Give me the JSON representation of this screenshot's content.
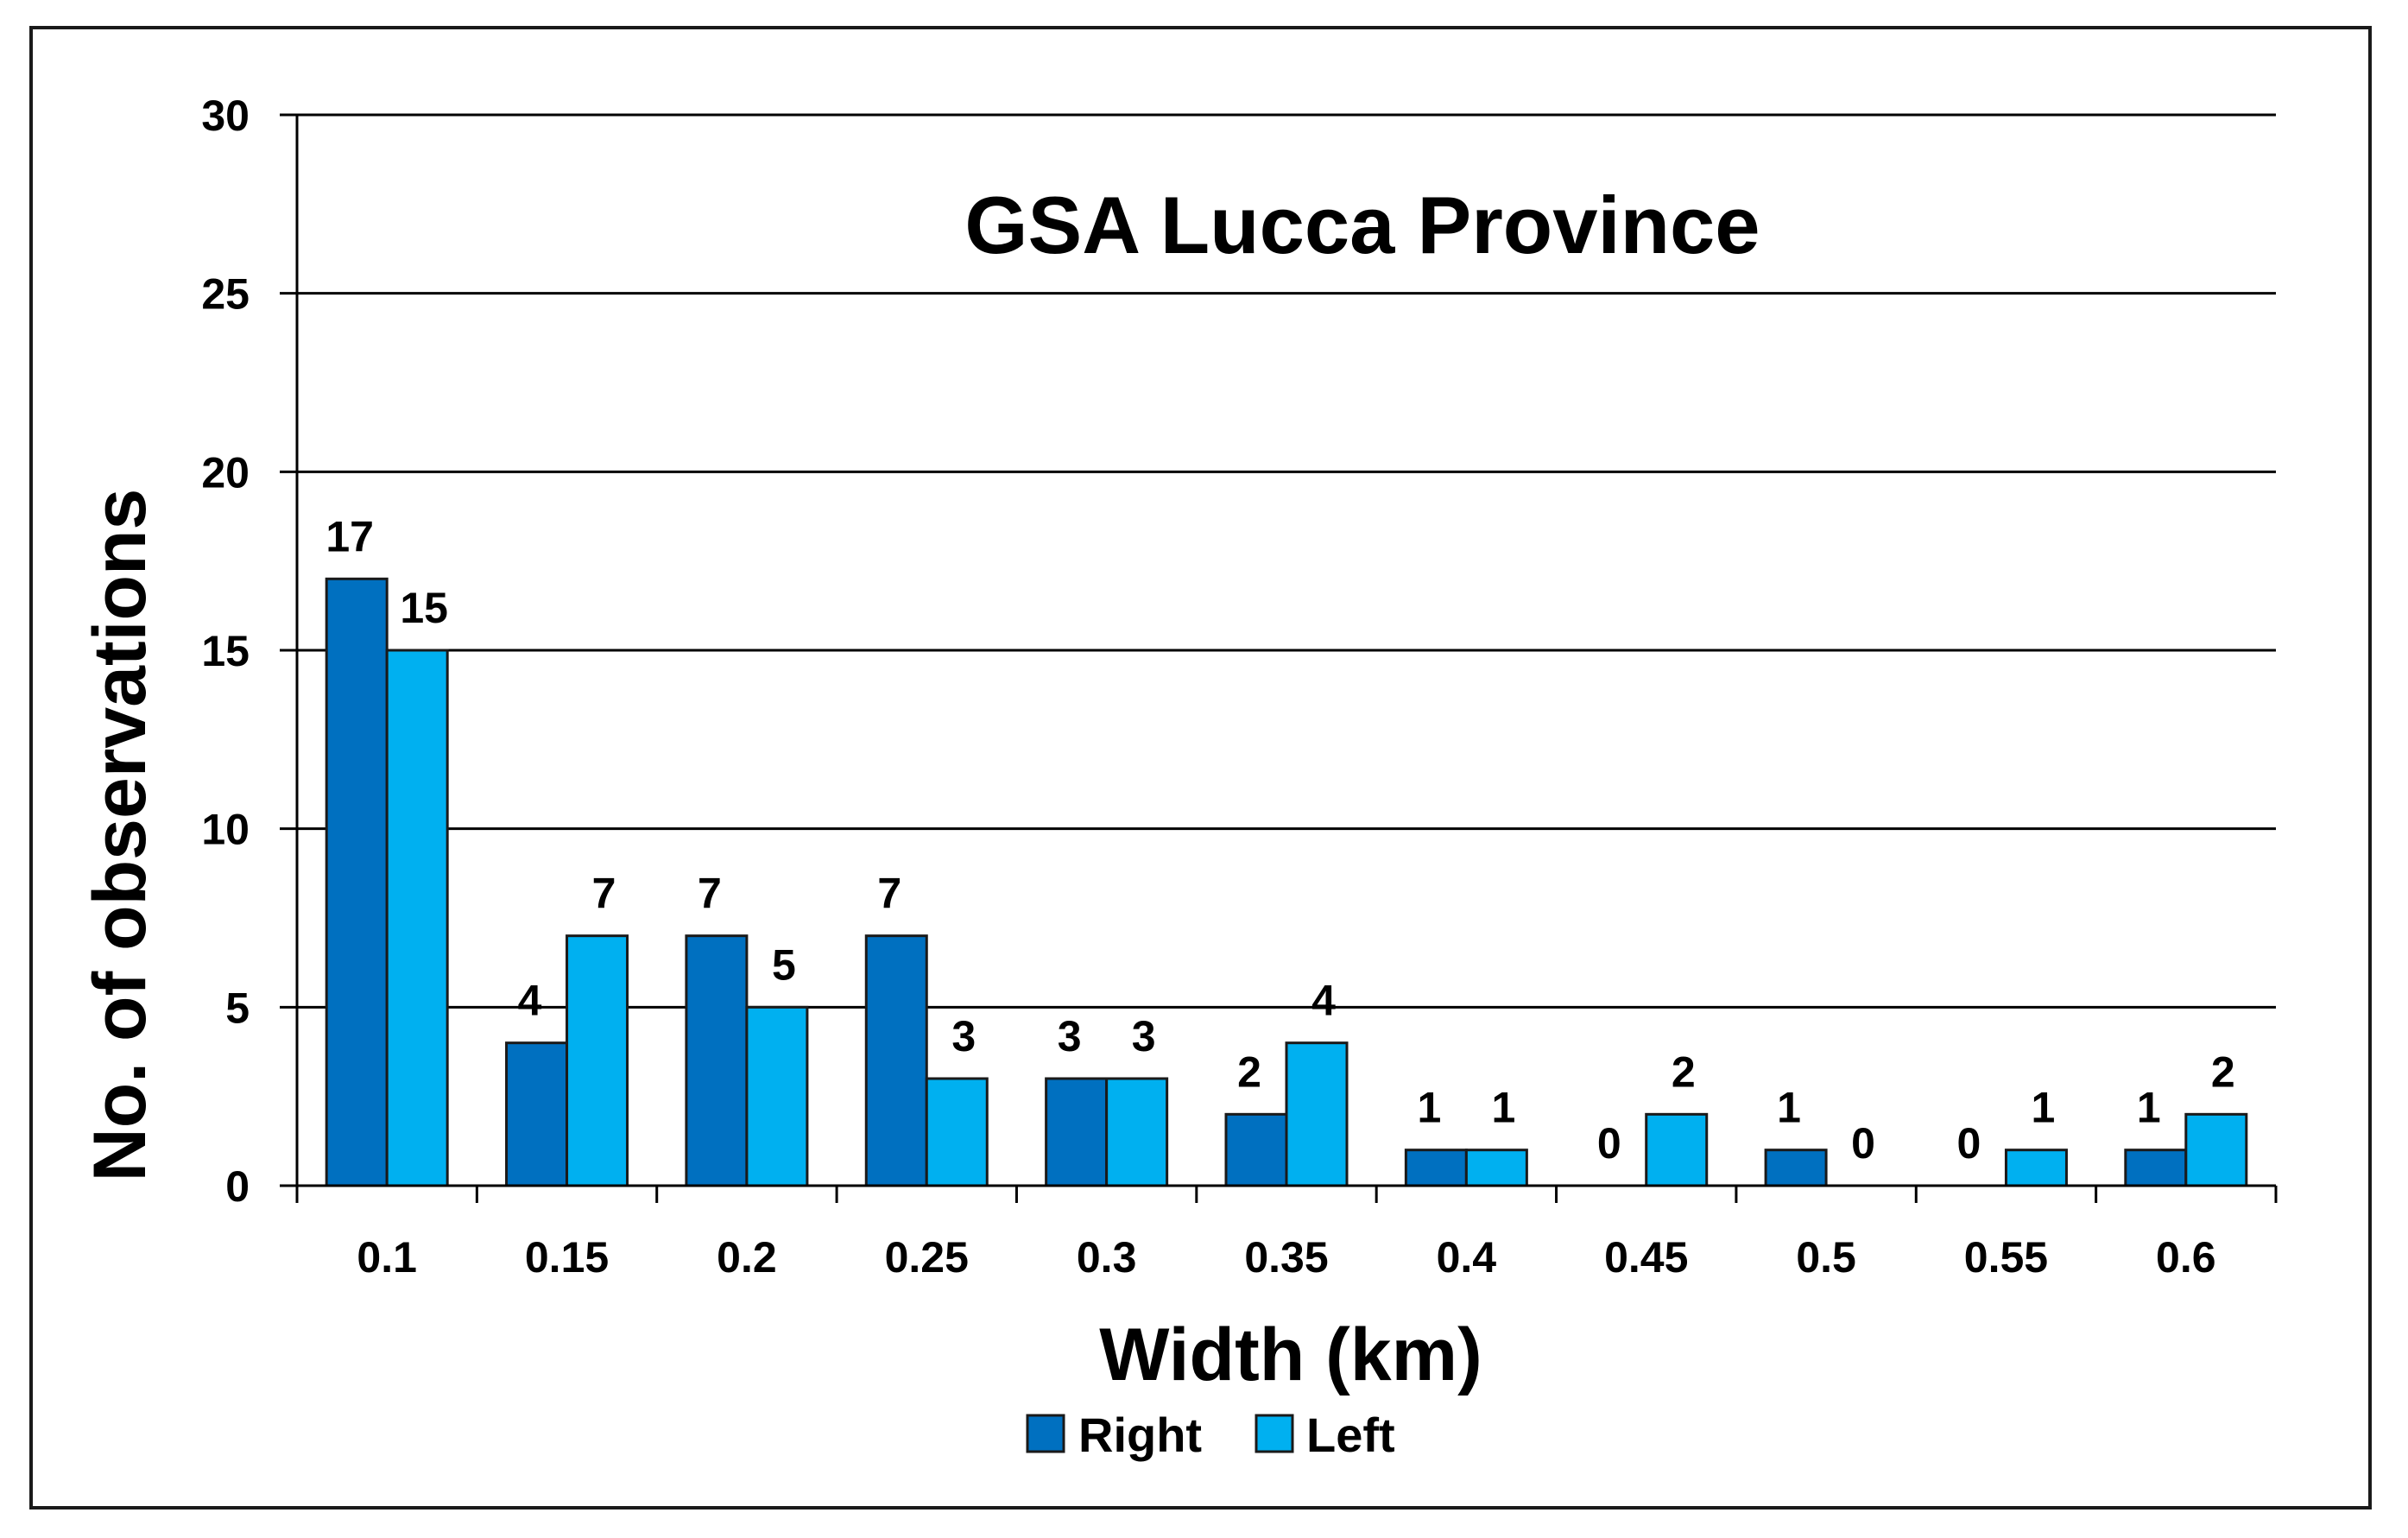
{
  "chart_data": {
    "type": "bar",
    "title": "GSA Lucca Province",
    "xlabel": "Width (km)",
    "ylabel": "No. of observations",
    "categories": [
      "0.1",
      "0.15",
      "0.2",
      "0.25",
      "0.3",
      "0.35",
      "0.4",
      "0.45",
      "0.5",
      "0.55",
      "0.6"
    ],
    "series": [
      {
        "name": "Right",
        "color": "#0070C0",
        "values": [
          17,
          4,
          7,
          7,
          3,
          2,
          1,
          0,
          1,
          0,
          1
        ]
      },
      {
        "name": "Left",
        "color": "#00B0F0",
        "values": [
          15,
          7,
          5,
          3,
          3,
          4,
          1,
          2,
          0,
          1,
          2
        ]
      }
    ],
    "ylim": [
      0,
      30
    ],
    "yticks": [
      "0",
      "5",
      "10",
      "15",
      "20",
      "25",
      "30"
    ],
    "grid": true,
    "legend": "bottom-center"
  }
}
